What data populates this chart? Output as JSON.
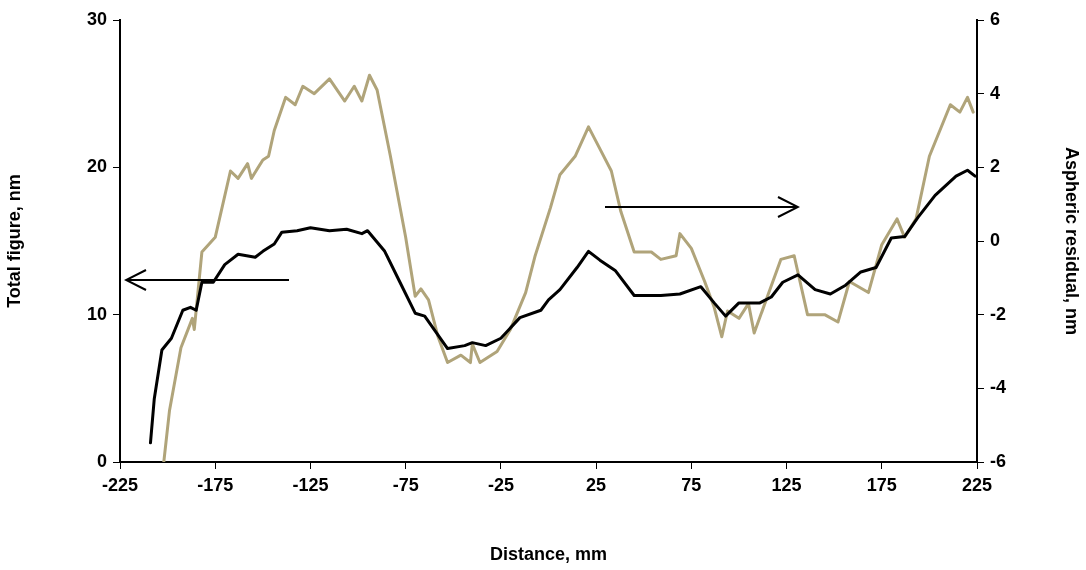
{
  "chart_data": {
    "type": "line",
    "xlabel": "Distance, mm",
    "ylabel": "Total figure, nm",
    "y2label": "Aspheric residual, nm",
    "xlim": [
      -225,
      225
    ],
    "xticks": [
      -225,
      -175,
      -125,
      -75,
      -25,
      25,
      75,
      125,
      175,
      225
    ],
    "ylim": [
      0,
      30
    ],
    "yticks": [
      0,
      10,
      20,
      30
    ],
    "y2lim": [
      -6,
      6
    ],
    "y2ticks": [
      -6,
      -4,
      -2,
      0,
      2,
      4,
      6
    ],
    "grid": false,
    "legend": false,
    "marker": "none",
    "line_style": "solid",
    "series": [
      {
        "color": "#000000",
        "x": [
          -209,
          -207,
          -203,
          -198,
          -192,
          -188,
          -185,
          -182,
          -176,
          -170,
          -163,
          -154,
          -150,
          -144,
          -140,
          -132,
          -125,
          -115,
          -106,
          -98,
          -95,
          -86,
          -78,
          -70,
          -65,
          -59,
          -53,
          -44,
          -40,
          -33,
          -25,
          -15,
          -4,
          0,
          6,
          15,
          21,
          27,
          35,
          45,
          59,
          69,
          80,
          87,
          93,
          100,
          111,
          117,
          123,
          131,
          140,
          148,
          156,
          164,
          172,
          180,
          187,
          194,
          203,
          214,
          220,
          224
        ],
        "values": [
          1.3,
          4.3,
          7.6,
          8.4,
          10.3,
          10.5,
          10.3,
          12.2,
          12.2,
          13.4,
          14.1,
          13.9,
          14.3,
          14.8,
          15.6,
          15.7,
          15.9,
          15.7,
          15.8,
          15.5,
          15.7,
          14.3,
          12.2,
          10.1,
          9.9,
          8.8,
          7.7,
          7.9,
          8.1,
          7.9,
          8.4,
          9.8,
          10.3,
          11.0,
          11.7,
          13.2,
          14.3,
          13.7,
          13.0,
          11.3,
          11.3,
          11.4,
          11.9,
          10.8,
          9.9,
          10.8,
          10.8,
          11.2,
          12.2,
          12.7,
          11.7,
          11.4,
          12.0,
          12.9,
          13.2,
          15.2,
          15.3,
          16.6,
          18.1,
          19.4,
          19.8,
          19.4
        ]
      },
      {
        "color": "#b0a47a",
        "axis": "y2",
        "x": [
          -202,
          -199,
          -193,
          -187,
          -186,
          -182,
          -175,
          -167,
          -163,
          -158,
          -156,
          -150,
          -147,
          -144,
          -138,
          -133,
          -129,
          -123,
          -115,
          -107,
          -102,
          -98,
          -94,
          -90,
          -83,
          -75,
          -70,
          -67,
          -63,
          -58,
          -53,
          -46,
          -41,
          -40,
          -36,
          -27,
          -20,
          -12,
          -7,
          1,
          6,
          14,
          21,
          27,
          33,
          38,
          45,
          54,
          59,
          67,
          69,
          75,
          82,
          87,
          91,
          94,
          100,
          105,
          108,
          115,
          122,
          129,
          136,
          145,
          152,
          158,
          168,
          175,
          183,
          187,
          193,
          200,
          211,
          216,
          220,
          223
        ],
        "values": [
          -6.0,
          -4.6,
          -2.9,
          -2.1,
          -2.4,
          -0.3,
          0.1,
          1.9,
          1.7,
          2.1,
          1.7,
          2.2,
          2.3,
          3.0,
          3.9,
          3.7,
          4.2,
          4.0,
          4.4,
          3.8,
          4.2,
          3.8,
          4.5,
          4.1,
          2.3,
          0.1,
          -1.5,
          -1.3,
          -1.6,
          -2.6,
          -3.3,
          -3.1,
          -3.3,
          -2.8,
          -3.3,
          -3.0,
          -2.4,
          -1.4,
          -0.4,
          0.9,
          1.8,
          2.3,
          3.1,
          2.5,
          1.9,
          0.8,
          -0.3,
          -0.3,
          -0.5,
          -0.4,
          0.2,
          -0.2,
          -1.1,
          -1.8,
          -2.6,
          -1.9,
          -2.1,
          -1.7,
          -2.5,
          -1.5,
          -0.5,
          -0.4,
          -2.0,
          -2.0,
          -2.2,
          -1.1,
          -1.4,
          -0.1,
          0.6,
          0.1,
          0.6,
          2.3,
          3.7,
          3.5,
          3.9,
          3.5
        ]
      }
    ]
  }
}
